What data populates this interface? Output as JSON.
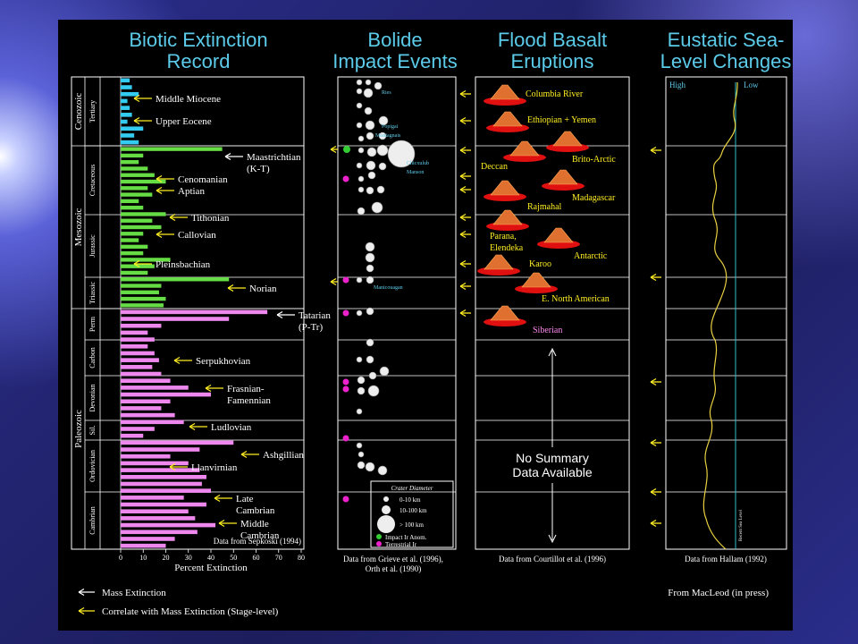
{
  "chart_data": {
    "type": "barh",
    "title": [
      "Biotic Extinction",
      "Record"
    ],
    "xlabel": "Percent Extinction",
    "source": "Data from Sepkoski (1994)",
    "xlim": [
      0,
      80
    ],
    "xticks": [
      0,
      10,
      20,
      30,
      40,
      50,
      60,
      70,
      80
    ],
    "series": [
      {
        "name": "Cenozoic",
        "color": "#33ccf0",
        "values": [
          4,
          5,
          8,
          3,
          4,
          5,
          3,
          10,
          6,
          8
        ]
      },
      {
        "name": "Mesozoic",
        "color": "#66dd44",
        "values": [
          45,
          10,
          8,
          12,
          15,
          20,
          12,
          14,
          8,
          10,
          20,
          14,
          18,
          10,
          8,
          12,
          10,
          22,
          15,
          12,
          48,
          18,
          17,
          20,
          19
        ]
      },
      {
        "name": "Paleozoic",
        "color": "#ee88ee",
        "values": [
          65,
          48,
          18,
          12,
          15,
          12,
          15,
          17,
          14,
          18,
          22,
          30,
          40,
          22,
          18,
          24,
          28,
          15,
          10,
          50,
          35,
          22,
          30,
          35,
          38,
          36,
          40,
          28,
          38,
          30,
          33,
          42,
          34,
          24,
          20
        ]
      }
    ],
    "periods": [
      "Tertiary",
      "Cretaceous",
      "Jurassic",
      "Triassic",
      "Perm",
      "Carbon",
      "Devonian",
      "Sil.",
      "Ordovician",
      "Cambrian"
    ],
    "annotations": [
      [
        "Middle Miocene"
      ],
      [
        "Upper Eocene"
      ],
      [
        "Maastrichtian",
        "(K-T)"
      ],
      [
        "Cenomanian"
      ],
      [
        "Aptian"
      ],
      [
        "Tithonian"
      ],
      [
        "Callovian"
      ],
      [
        "Pleinsbachian"
      ],
      [
        "Norian"
      ],
      [
        "Tatarian",
        "(P-Tr)"
      ],
      [
        "Serpukhovian"
      ],
      [
        "Frasnian-",
        "Famennian"
      ],
      [
        "Ludlovian"
      ],
      [
        "Ashgillian"
      ],
      [
        "Llanvirnian"
      ],
      [
        "Late",
        "Cambrian"
      ],
      [
        "Middle",
        "Cambrian"
      ]
    ]
  },
  "bolide": {
    "title": [
      "Bolide",
      "Impact Events"
    ],
    "craters": [
      "Ries",
      "Popigai",
      "Montagnais",
      "Chicxulub",
      "Manson",
      "Manicouagan"
    ],
    "legend": {
      "title": "Crater Diameter",
      "sizes": [
        "0-10 km",
        "10-100 km",
        "> 100 km"
      ],
      "markers": [
        "Impact Ir Anom.",
        "Terrestrial Ir"
      ]
    },
    "source": [
      "Data from Grieve et al. (1996),",
      "Orth et al. (1990)"
    ]
  },
  "basalt": {
    "title": [
      "Flood Basalt",
      "Eruptions"
    ],
    "eruptions": [
      [
        "Columbia River"
      ],
      [
        "Ethiopian + Yemen"
      ],
      [
        "Deccan"
      ],
      [
        "Brito-Arctic"
      ],
      [
        "Madagascar"
      ],
      [
        "Rajmahal"
      ],
      [
        "Parana,",
        "Elendeka"
      ],
      [
        "Antarctic"
      ],
      [
        "Karoo"
      ],
      [
        "E. North American"
      ],
      [
        "Siberian"
      ]
    ],
    "note": [
      "No Summary",
      "Data Available"
    ],
    "source": "Data from Courtillot et al. (1996)"
  },
  "sealevel": {
    "title": [
      "Eustatic Sea-",
      "Level Changes"
    ],
    "high": "High",
    "low": "Low",
    "recent": "Recent Sea Level",
    "source": "Data from Hallam (1992)"
  },
  "footer": {
    "legend": [
      "Mass Extinction",
      "Correlate with Mass Extinction (Stage-level)"
    ],
    "credit": "From MacLeod (in press)"
  }
}
